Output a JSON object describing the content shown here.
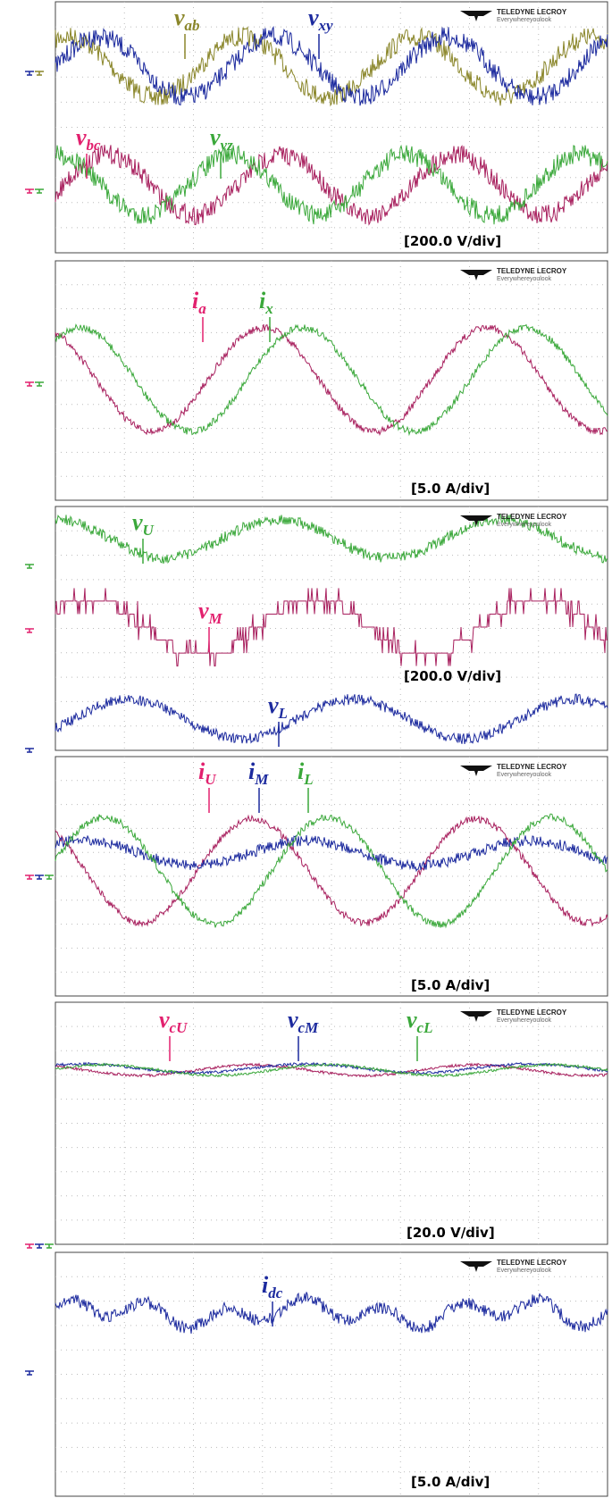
{
  "panels": [
    {
      "logo": {
        "brand": "TELEDYNE LECROY",
        "tagline": "Everywhereyoulook"
      },
      "scale": "[200.0 V/div]",
      "labels": [
        {
          "symbol": "v",
          "sub": "ab"
        },
        {
          "symbol": "v",
          "sub": "xy"
        },
        {
          "symbol": "v",
          "sub": "bc"
        },
        {
          "symbol": "v",
          "sub": "yz"
        }
      ]
    },
    {
      "logo": {
        "brand": "TELEDYNE LECROY",
        "tagline": "Everywhereyoulook"
      },
      "scale": "[5.0 A/div]",
      "labels": [
        {
          "symbol": "i",
          "sub": "a"
        },
        {
          "symbol": "i",
          "sub": "x"
        }
      ]
    },
    {
      "logo": {
        "brand": "TELEDYNE LECROY",
        "tagline": "Everywhereyoulook"
      },
      "scale": "[200.0 V/div]",
      "labels": [
        {
          "symbol": "v",
          "sub": "U"
        },
        {
          "symbol": "v",
          "sub": "M"
        },
        {
          "symbol": "v",
          "sub": "L"
        }
      ]
    },
    {
      "logo": {
        "brand": "TELEDYNE LECROY",
        "tagline": "Everywhereyoulook"
      },
      "scale": "[5.0 A/div]",
      "labels": [
        {
          "symbol": "i",
          "sub": "U"
        },
        {
          "symbol": "i",
          "sub": "M"
        },
        {
          "symbol": "i",
          "sub": "L"
        }
      ]
    },
    {
      "logo": {
        "brand": "TELEDYNE LECROY",
        "tagline": "Everywhereyoulook"
      },
      "scale": "[20.0 V/div]",
      "labels": [
        {
          "symbol": "v",
          "sub": "cU"
        },
        {
          "symbol": "v",
          "sub": "cM"
        },
        {
          "symbol": "v",
          "sub": "cL"
        }
      ]
    },
    {
      "logo": {
        "brand": "TELEDYNE LECROY",
        "tagline": "Everywhereyoulook"
      },
      "scale": "[5.0 A/div]",
      "labels": [
        {
          "symbol": "i",
          "sub": "dc"
        }
      ]
    }
  ]
}
